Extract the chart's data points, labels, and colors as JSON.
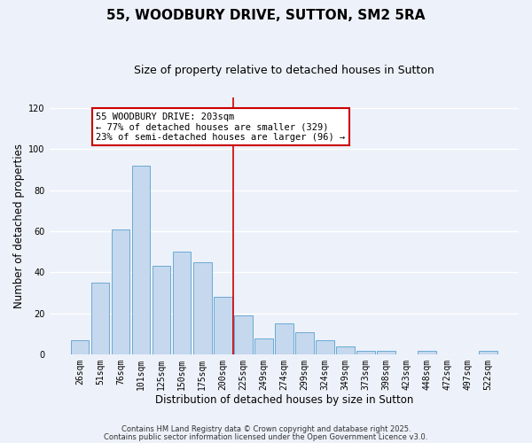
{
  "title": "55, WOODBURY DRIVE, SUTTON, SM2 5RA",
  "subtitle": "Size of property relative to detached houses in Sutton",
  "xlabel": "Distribution of detached houses by size in Sutton",
  "ylabel": "Number of detached properties",
  "bar_labels": [
    "26sqm",
    "51sqm",
    "76sqm",
    "101sqm",
    "125sqm",
    "150sqm",
    "175sqm",
    "200sqm",
    "225sqm",
    "249sqm",
    "274sqm",
    "299sqm",
    "324sqm",
    "349sqm",
    "373sqm",
    "398sqm",
    "423sqm",
    "448sqm",
    "472sqm",
    "497sqm",
    "522sqm"
  ],
  "bar_values": [
    7,
    35,
    61,
    92,
    43,
    50,
    45,
    28,
    19,
    8,
    15,
    11,
    7,
    4,
    2,
    2,
    0,
    2,
    0,
    0,
    2
  ],
  "bar_color": "#c5d8ee",
  "bar_edge_color": "#6aaad4",
  "vline_color": "#cc0000",
  "annotation_title": "55 WOODBURY DRIVE: 203sqm",
  "annotation_line1": "← 77% of detached houses are smaller (329)",
  "annotation_line2": "23% of semi-detached houses are larger (96) →",
  "annotation_box_color": "#ffffff",
  "annotation_box_edge": "#cc0000",
  "ylim": [
    0,
    125
  ],
  "yticks": [
    0,
    20,
    40,
    60,
    80,
    100,
    120
  ],
  "footer1": "Contains HM Land Registry data © Crown copyright and database right 2025.",
  "footer2": "Contains public sector information licensed under the Open Government Licence v3.0.",
  "bg_color": "#edf1f9",
  "plot_bg_color": "#edf1f9",
  "grid_color": "#ffffff",
  "title_fontsize": 11,
  "subtitle_fontsize": 9,
  "axis_label_fontsize": 8.5,
  "tick_fontsize": 7,
  "footer_fontsize": 6,
  "annotation_fontsize": 7.5
}
